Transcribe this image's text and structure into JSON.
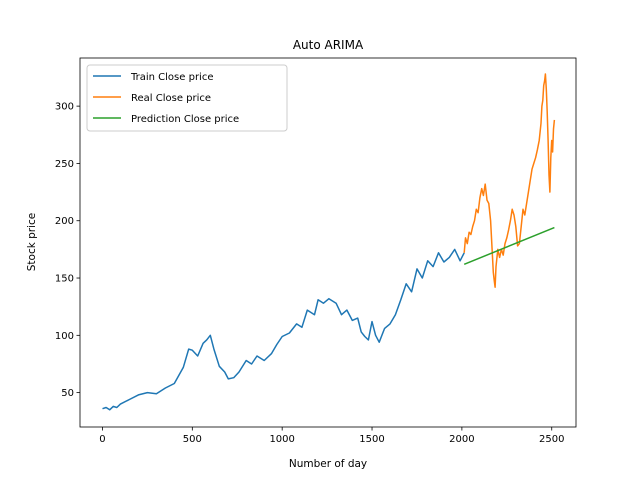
{
  "chart_data": {
    "type": "line",
    "title": "Auto ARIMA",
    "xlabel": "Number of day",
    "ylabel": "Stock price",
    "xlim": [
      -125,
      2635
    ],
    "ylim": [
      20,
      342
    ],
    "xticks": [
      0,
      500,
      1000,
      1500,
      2000,
      2500
    ],
    "yticks": [
      50,
      100,
      150,
      200,
      250,
      300
    ],
    "grid": false,
    "legend_position": "top-left",
    "series": [
      {
        "name": "Train Close price",
        "color": "#1f77b4",
        "x": [
          0,
          20,
          40,
          60,
          80,
          100,
          150,
          200,
          250,
          300,
          350,
          400,
          450,
          480,
          500,
          530,
          560,
          580,
          600,
          620,
          650,
          680,
          700,
          730,
          760,
          800,
          830,
          860,
          900,
          940,
          970,
          1000,
          1040,
          1080,
          1110,
          1140,
          1180,
          1200,
          1230,
          1260,
          1300,
          1330,
          1360,
          1390,
          1420,
          1440,
          1460,
          1480,
          1500,
          1520,
          1540,
          1570,
          1600,
          1630,
          1660,
          1690,
          1720,
          1750,
          1780,
          1810,
          1840,
          1870,
          1900,
          1930,
          1960,
          1990,
          2013
        ],
        "y": [
          36,
          37,
          35,
          38,
          37,
          40,
          44,
          48,
          50,
          49,
          54,
          58,
          72,
          88,
          87,
          82,
          93,
          96,
          100,
          88,
          73,
          68,
          62,
          63,
          68,
          78,
          75,
          82,
          78,
          84,
          92,
          99,
          102,
          110,
          107,
          122,
          118,
          131,
          128,
          132,
          128,
          118,
          122,
          113,
          115,
          103,
          99,
          96,
          112,
          100,
          94,
          106,
          110,
          118,
          131,
          145,
          138,
          158,
          150,
          165,
          160,
          172,
          164,
          168,
          175,
          165,
          172
        ]
      },
      {
        "name": "Real Close price",
        "color": "#ff7f0e",
        "x": [
          2013,
          2020,
          2030,
          2040,
          2050,
          2060,
          2070,
          2080,
          2090,
          2100,
          2110,
          2120,
          2130,
          2140,
          2150,
          2160,
          2170,
          2175,
          2180,
          2185,
          2190,
          2200,
          2210,
          2220,
          2230,
          2240,
          2250,
          2260,
          2270,
          2280,
          2290,
          2300,
          2310,
          2320,
          2330,
          2340,
          2350,
          2360,
          2370,
          2380,
          2390,
          2400,
          2410,
          2420,
          2430,
          2440,
          2445,
          2450,
          2455,
          2460,
          2465,
          2470,
          2475,
          2480,
          2485,
          2490,
          2495,
          2500,
          2505,
          2510,
          2515
        ],
        "y": [
          172,
          185,
          180,
          190,
          188,
          195,
          200,
          210,
          207,
          220,
          228,
          222,
          232,
          218,
          215,
          200,
          170,
          155,
          148,
          142,
          160,
          175,
          168,
          175,
          170,
          180,
          185,
          192,
          200,
          210,
          205,
          195,
          178,
          180,
          195,
          210,
          205,
          215,
          225,
          235,
          245,
          250,
          255,
          262,
          270,
          285,
          300,
          305,
          318,
          322,
          328,
          315,
          295,
          270,
          240,
          225,
          255,
          270,
          260,
          280,
          288
        ]
      },
      {
        "name": "Prediction Close price",
        "color": "#2ca02c",
        "x": [
          2013,
          2515
        ],
        "y": [
          162,
          194
        ]
      }
    ]
  }
}
